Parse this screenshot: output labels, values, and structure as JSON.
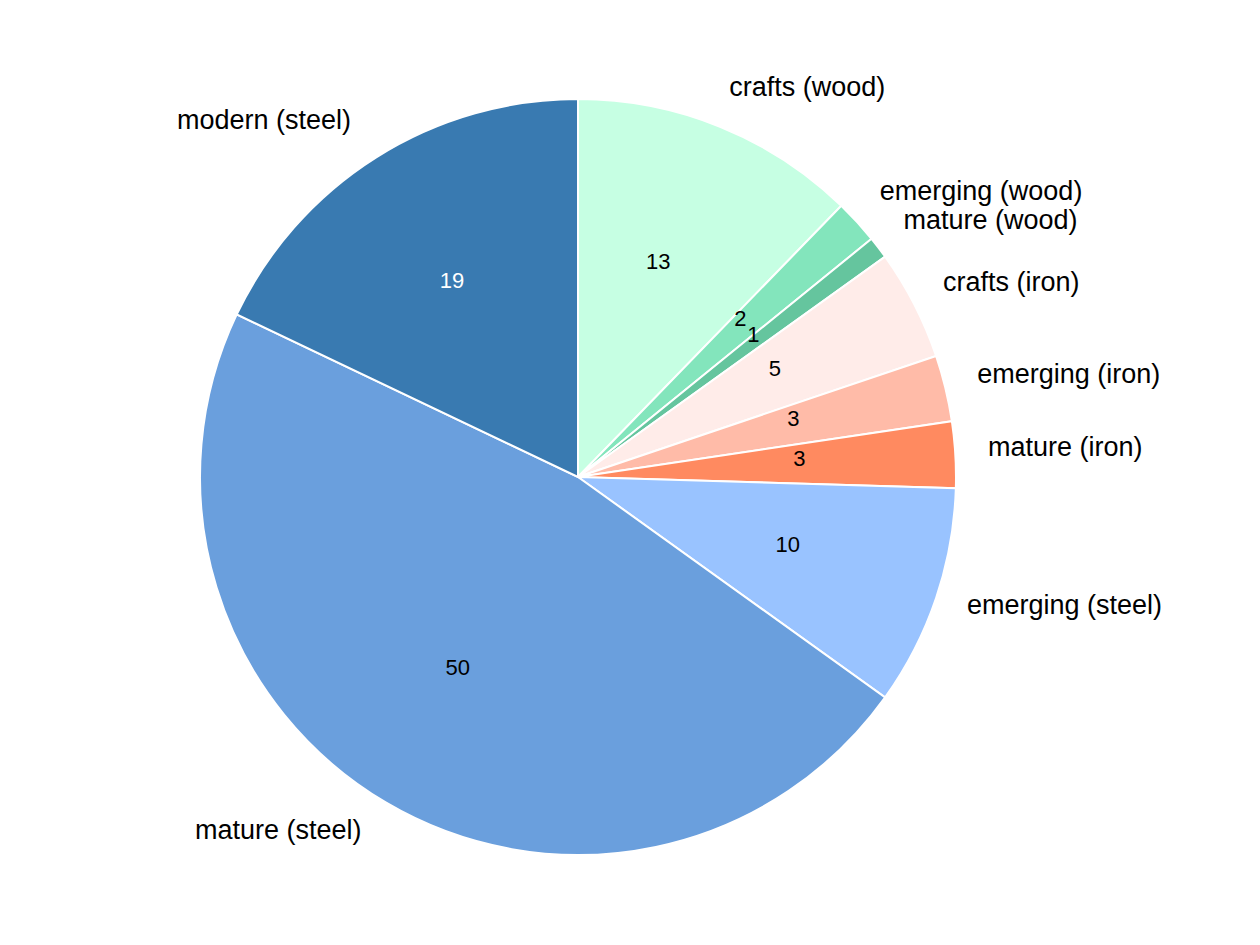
{
  "chart_data": {
    "type": "pie",
    "categories": [
      "crafts (wood)",
      "emerging (wood)",
      "mature (wood)",
      "crafts (iron)",
      "emerging (iron)",
      "mature (iron)",
      "emerging (steel)",
      "mature (steel)",
      "modern (steel)"
    ],
    "values": [
      13,
      2,
      1,
      5,
      3,
      3,
      10,
      50,
      19
    ],
    "colors": [
      "#c6ffe3",
      "#83e5bc",
      "#65c59e",
      "#ffece9",
      "#ffbba8",
      "#ff8a60",
      "#99c3ff",
      "#6a9fdd",
      "#397ab1"
    ],
    "data_labels": true
  }
}
